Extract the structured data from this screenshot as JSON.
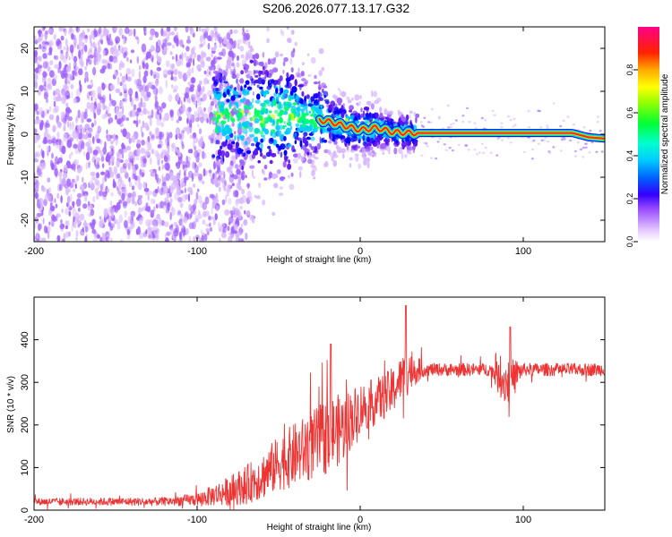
{
  "chart_data": [
    {
      "id": "spectrogram",
      "type": "heatmap",
      "title": "S206.2026.077.13.17.G32",
      "xlabel": "Height of straight line (km)",
      "ylabel": "Frequency (Hz)",
      "xlim": [
        -200,
        150
      ],
      "ylim": [
        -25,
        25
      ],
      "xticks": [
        -200,
        -100,
        0,
        100
      ],
      "yticks": [
        -20,
        -10,
        0,
        10,
        20
      ],
      "xtick_labels": [
        "-200",
        "-100",
        "0",
        "100"
      ],
      "ytick_labels": [
        "-20",
        "-10",
        "0",
        "10",
        "20"
      ],
      "colorbar": {
        "label": "Normalized spectral amplitude",
        "range": [
          0,
          1
        ],
        "ticks": [
          0.0,
          0.2,
          0.4,
          0.6,
          0.8
        ],
        "tick_labels": [
          "0.0",
          "0.2",
          "0.4",
          "0.6",
          "0.8"
        ],
        "colormap": [
          "#f4e8ff",
          "#d8b8ff",
          "#a060ff",
          "#5a10f0",
          "#0000ff",
          "#00ccff",
          "#00ff66",
          "#ccff00",
          "#ffcc00",
          "#ff2020",
          "#ff1088"
        ]
      },
      "signal_track": {
        "x": [
          -60,
          -40,
          -20,
          -10,
          0,
          10,
          20,
          30,
          35,
          60,
          100,
          130,
          140,
          150
        ],
        "freq": [
          4.0,
          4.0,
          3.0,
          2.0,
          1.0,
          1.5,
          0.5,
          0.3,
          0.3,
          0.3,
          0.3,
          0.3,
          -0.7,
          -1.0
        ]
      },
      "noise_region_x": [
        -200,
        -70
      ],
      "transition_region_x": [
        -70,
        35
      ]
    },
    {
      "id": "snr",
      "type": "line",
      "xlabel": "Height of straight line (km)",
      "ylabel": "SNR (10 * v/v)",
      "xlim": [
        -200,
        150
      ],
      "ylim": [
        0,
        500
      ],
      "xticks": [
        -200,
        -100,
        0,
        100
      ],
      "yticks": [
        0,
        100,
        200,
        300,
        400
      ],
      "xtick_labels": [
        "-200",
        "-100",
        "0",
        "100"
      ],
      "ytick_labels": [
        "0",
        "100",
        "200",
        "300",
        "400"
      ],
      "color": "#ee3333",
      "series": [
        {
          "name": "SNR",
          "x_trend": [
            -200,
            -120,
            -100,
            -90,
            -80,
            -70,
            -60,
            -50,
            -40,
            -30,
            -20,
            -10,
            0,
            10,
            20,
            25,
            30,
            35,
            40,
            60,
            80,
            85,
            90,
            95,
            100,
            120,
            150
          ],
          "y_trend": [
            20,
            20,
            25,
            35,
            45,
            60,
            80,
            110,
            130,
            150,
            175,
            195,
            240,
            255,
            280,
            310,
            330,
            330,
            330,
            330,
            330,
            310,
            300,
            320,
            330,
            330,
            330
          ],
          "y_spread": [
            8,
            10,
            15,
            25,
            35,
            45,
            55,
            65,
            75,
            80,
            90,
            80,
            60,
            55,
            55,
            50,
            60,
            30,
            15,
            15,
            15,
            40,
            60,
            35,
            15,
            15,
            15
          ],
          "peaks": [
            {
              "x": -18,
              "y": 390
            },
            {
              "x": 28,
              "y": 480
            },
            {
              "x": 92,
              "y": 430
            }
          ]
        }
      ]
    }
  ]
}
